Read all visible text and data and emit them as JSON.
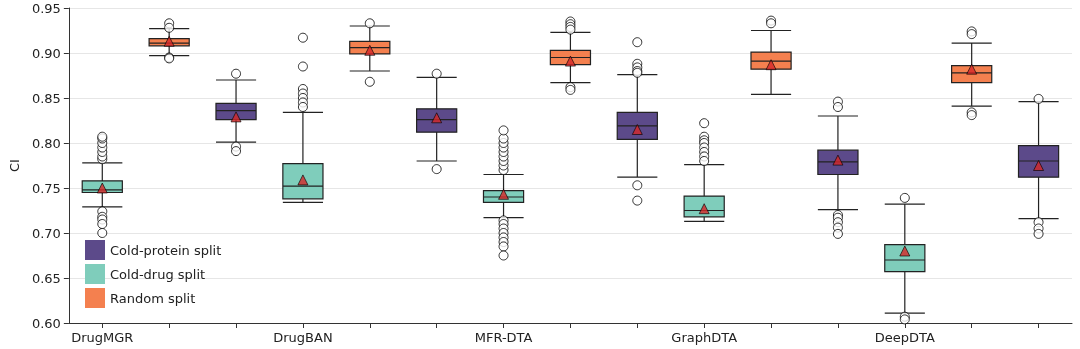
{
  "chart_data": {
    "type": "box",
    "ylabel": "CI",
    "categories": [
      "DrugMGR",
      null,
      null,
      "DrugBAN",
      null,
      null,
      "MFR-DTA",
      null,
      null,
      "GraphDTA",
      null,
      null,
      "DeepDTA",
      null,
      null
    ],
    "ylim": [
      0.6,
      0.95
    ],
    "yticks": [
      {
        "value": 0.6,
        "label": "0.60"
      },
      {
        "value": 0.65,
        "label": "0.65"
      },
      {
        "value": 0.7,
        "label": "0.70"
      },
      {
        "value": 0.75,
        "label": "0.75"
      },
      {
        "value": 0.8,
        "label": "0.80"
      },
      {
        "value": 0.85,
        "label": "0.85"
      },
      {
        "value": 0.9,
        "label": "0.90"
      },
      {
        "value": 0.95,
        "label": "0.95"
      }
    ],
    "grid": "y",
    "legend": "bottom left",
    "series": [
      {
        "name": "Cold-protein split",
        "color": "#5c4a8a",
        "boxes": [
          null,
          null,
          {
            "low": 0.801,
            "q1": 0.826,
            "median": 0.836,
            "q3": 0.844,
            "high": 0.87,
            "mean": 0.829,
            "outliers": [
              0.877,
              0.796,
              0.791
            ]
          },
          null,
          null,
          {
            "low": 0.78,
            "q1": 0.812,
            "median": 0.826,
            "q3": 0.838,
            "high": 0.873,
            "mean": 0.828,
            "outliers": [
              0.877,
              0.771
            ]
          },
          null,
          null,
          {
            "low": 0.762,
            "q1": 0.804,
            "median": 0.819,
            "q3": 0.834,
            "high": 0.876,
            "mean": 0.815,
            "outliers": [
              0.912,
              0.888,
              0.884,
              0.88,
              0.878,
              0.753,
              0.736
            ]
          },
          null,
          null,
          {
            "low": 0.726,
            "q1": 0.765,
            "median": 0.779,
            "q3": 0.792,
            "high": 0.83,
            "mean": 0.781,
            "outliers": [
              0.846,
              0.84,
              0.72,
              0.717,
              0.712,
              0.706,
              0.699
            ]
          },
          null,
          null,
          {
            "low": 0.716,
            "q1": 0.762,
            "median": 0.78,
            "q3": 0.797,
            "high": 0.846,
            "mean": 0.775,
            "outliers": [
              0.849,
              0.712,
              0.705,
              0.699
            ]
          }
        ]
      },
      {
        "name": "Cold-drug split",
        "color": "#7fcdbb",
        "boxes": [
          {
            "low": 0.729,
            "q1": 0.745,
            "median": 0.748,
            "q3": 0.758,
            "high": 0.778,
            "mean": 0.75,
            "outliers": [
              0.782,
              0.785,
              0.79,
              0.795,
              0.8,
              0.805,
              0.807,
              0.724,
              0.718,
              0.715,
              0.71,
              0.7
            ]
          },
          null,
          null,
          {
            "low": 0.734,
            "q1": 0.738,
            "median": 0.752,
            "q3": 0.777,
            "high": 0.834,
            "mean": 0.759,
            "outliers": [
              0.917,
              0.885,
              0.86,
              0.855,
              0.85,
              0.845,
              0.84
            ]
          },
          null,
          null,
          {
            "low": 0.717,
            "q1": 0.734,
            "median": 0.74,
            "q3": 0.747,
            "high": 0.765,
            "mean": 0.743,
            "outliers": [
              0.77,
              0.775,
              0.78,
              0.785,
              0.79,
              0.795,
              0.8,
              0.805,
              0.814,
              0.714,
              0.71,
              0.705,
              0.7,
              0.695,
              0.69,
              0.685,
              0.675
            ]
          },
          null,
          null,
          {
            "low": 0.713,
            "q1": 0.718,
            "median": 0.725,
            "q3": 0.741,
            "high": 0.776,
            "mean": 0.727,
            "outliers": [
              0.822,
              0.807,
              0.803,
              0.8,
              0.795,
              0.79,
              0.785,
              0.78
            ]
          },
          null,
          null,
          {
            "low": 0.611,
            "q1": 0.657,
            "median": 0.67,
            "q3": 0.687,
            "high": 0.732,
            "mean": 0.68,
            "outliers": [
              0.739,
              0.607,
              0.604
            ]
          },
          null,
          null
        ]
      },
      {
        "name": "Random split",
        "color": "#f4804f",
        "boxes": [
          null,
          {
            "low": 0.897,
            "q1": 0.908,
            "median": 0.911,
            "q3": 0.916,
            "high": 0.927,
            "mean": 0.913,
            "outliers": [
              0.933,
              0.928,
              0.895,
              0.894
            ]
          },
          null,
          null,
          {
            "low": 0.88,
            "q1": 0.899,
            "median": 0.906,
            "q3": 0.913,
            "high": 0.93,
            "mean": 0.903,
            "outliers": [
              0.933,
              0.868
            ]
          },
          null,
          null,
          {
            "low": 0.867,
            "q1": 0.887,
            "median": 0.895,
            "q3": 0.903,
            "high": 0.923,
            "mean": 0.891,
            "outliers": [
              0.935,
              0.932,
              0.929,
              0.926,
              0.862,
              0.859
            ]
          },
          null,
          null,
          {
            "low": 0.854,
            "q1": 0.882,
            "median": 0.891,
            "q3": 0.901,
            "high": 0.925,
            "mean": 0.887,
            "outliers": [
              0.936,
              0.933
            ]
          },
          null,
          null,
          {
            "low": 0.841,
            "q1": 0.867,
            "median": 0.878,
            "q3": 0.886,
            "high": 0.911,
            "mean": 0.882,
            "outliers": [
              0.924,
              0.921,
              0.834,
              0.831
            ]
          },
          null
        ]
      }
    ]
  }
}
